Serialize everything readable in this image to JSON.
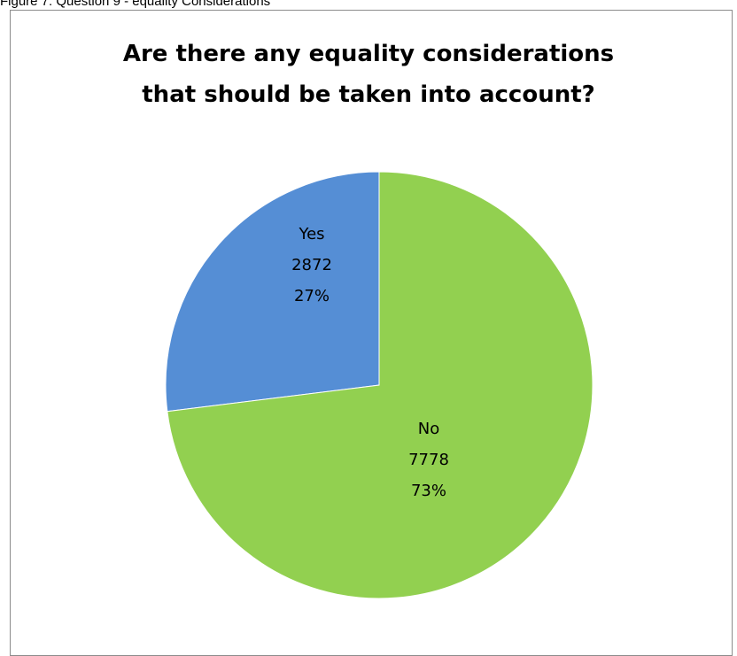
{
  "caption": "Figure 7:  Question 9 - equality Considerations",
  "chart_data": {
    "type": "pie",
    "title_lines": [
      "Are there any equality considerations",
      "that should be taken into account?"
    ],
    "slices": [
      {
        "name": "Yes",
        "value": 2872,
        "percent_label": "27%",
        "color": "#558ed5"
      },
      {
        "name": "No",
        "value": 7778,
        "percent_label": "73%",
        "color": "#92d050"
      }
    ],
    "start_angle_deg": 0,
    "direction": "counterclockwise",
    "legend": "none",
    "data_labels": "inside"
  }
}
